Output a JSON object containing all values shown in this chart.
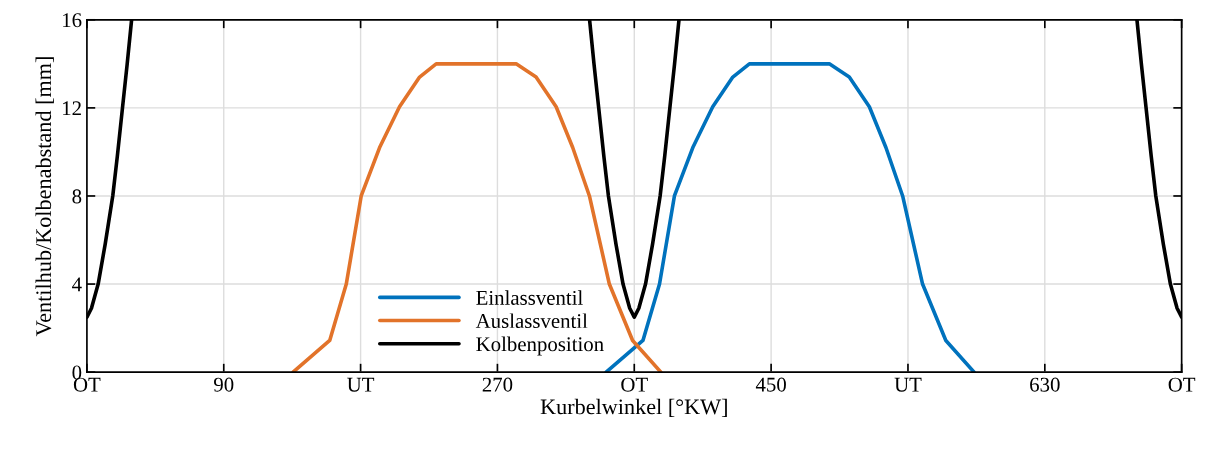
{
  "chart_data": {
    "type": "line",
    "xlabel": "Kurbelwinkel [°KW]",
    "ylabel": "Ventilhub/Kolbenabstand [mm]",
    "xlim": [
      0,
      720
    ],
    "ylim": [
      0,
      16
    ],
    "xticks": [
      {
        "value": 0,
        "label": "OT"
      },
      90,
      {
        "value": 180,
        "label": "UT"
      },
      270,
      {
        "value": 360,
        "label": "OT"
      },
      450,
      {
        "value": 540,
        "label": "UT"
      },
      630,
      {
        "value": 720,
        "label": "OT"
      }
    ],
    "yticks": [
      0,
      4,
      8,
      12,
      16
    ],
    "grid": true,
    "legend": "bottom",
    "marker": "none",
    "line_style": "solid",
    "series": [
      {
        "name": "Einlassventil",
        "color": "#0072bd",
        "x": [
          341.5,
          365.7,
          376.6,
          386.4,
          398.5,
          411.6,
          424.8,
          435.7,
          488.3,
          501.4,
          514.6,
          525.5,
          536.5,
          549.6,
          564.9,
          583.5
        ],
        "values": [
          0,
          1.44,
          4,
          8,
          10.2,
          12.05,
          13.4,
          14,
          14,
          13.4,
          12.05,
          10.2,
          8,
          4,
          1.44,
          0
        ]
      },
      {
        "name": "Auslassventil",
        "color": "#e2732a",
        "x": [
          135.6,
          159.7,
          170.6,
          180.4,
          192.5,
          205.6,
          218.8,
          229.7,
          282.3,
          295.4,
          308.6,
          319.5,
          330.5,
          343.6,
          358.9,
          377.5
        ],
        "values": [
          0,
          1.44,
          4,
          8,
          10.2,
          12.05,
          13.4,
          14,
          14,
          13.4,
          12.05,
          10.2,
          8,
          4,
          1.44,
          0
        ]
      },
      {
        "name": "Kolbenposition",
        "color": "#000000",
        "x": [
          0,
          3,
          7.4,
          12,
          17,
          20,
          23.4,
          26.5,
          29.4,
          30,
          330.6,
          333.5,
          336.6,
          340,
          343,
          348,
          352.6,
          357,
          360,
          363,
          367.4,
          372,
          377,
          380,
          383.4,
          386.5,
          389.4,
          390,
          690.6,
          693.5,
          696.6,
          700,
          703,
          708,
          712.6,
          717,
          720
        ],
        "values": [
          2.5,
          2.9,
          4,
          5.8,
          8,
          9.8,
          12,
          14,
          16,
          null,
          16,
          14,
          12,
          9.8,
          8,
          5.8,
          4,
          2.9,
          2.5,
          2.9,
          4,
          5.8,
          8,
          9.8,
          12,
          14,
          16,
          null,
          16,
          14,
          12,
          9.8,
          8,
          5.8,
          4,
          2.9,
          2.5
        ]
      }
    ]
  }
}
